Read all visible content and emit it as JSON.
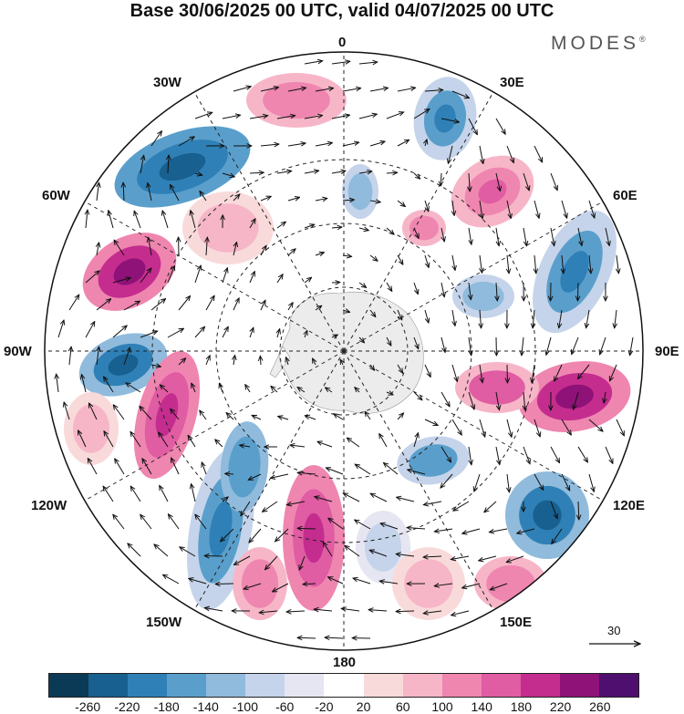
{
  "title": "Base 30/06/2025 00 UTC, valid 04/07/2025 00 UTC",
  "brand": "MODES",
  "brand_mark": "®",
  "longitude_labels": {
    "top": "0",
    "tr": "30E",
    "r1": "60E",
    "right": "90E",
    "r2": "120E",
    "br": "150E",
    "bottom": "180",
    "bl": "150W",
    "l2": "120W",
    "left": "90W",
    "l1": "60W",
    "tl": "30W"
  },
  "vector_reference": {
    "value": "30"
  },
  "colorbar": {
    "labels": [
      "-260",
      "-220",
      "-180",
      "-140",
      "-100",
      "-60",
      "-20",
      "20",
      "60",
      "100",
      "140",
      "180",
      "220",
      "260"
    ],
    "colors": [
      "#0b3a57",
      "#18608f",
      "#2f80b6",
      "#5a9fcc",
      "#90bbdc",
      "#c5d4ea",
      "#e6e6f2",
      "#ffffff",
      "#f9dada",
      "#f6b6c8",
      "#ef86b0",
      "#e05ca3",
      "#c42d8e",
      "#8e1278",
      "#4e0f6e"
    ]
  },
  "land_color": "#ececec",
  "accent_colors": {
    "negative": "#2f80b6",
    "positive": "#c42d8e"
  }
}
